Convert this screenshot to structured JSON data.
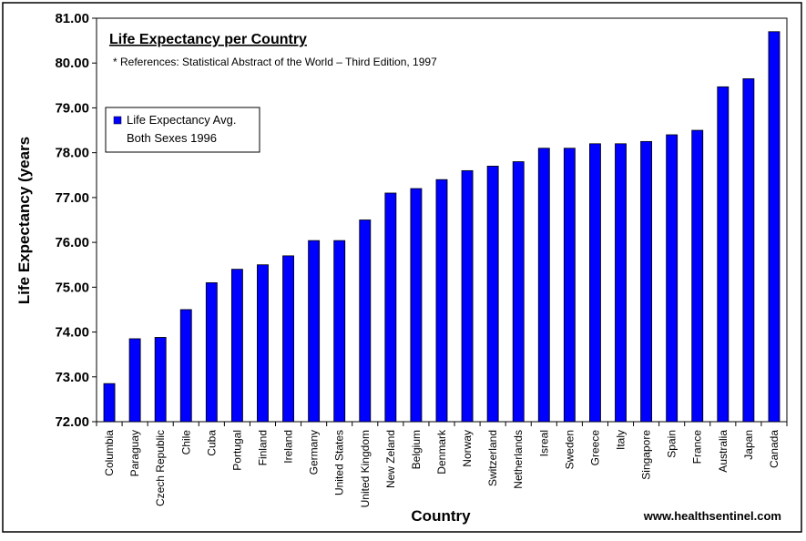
{
  "chart_data": {
    "type": "bar",
    "title": "Life Expectancy per Country",
    "subtitle": "* References: Statistical Abstract of the World – Third Edition, 1997",
    "xlabel": "Country",
    "ylabel": "Life Expectancy (years",
    "ylim": [
      72.0,
      81.0
    ],
    "yticks": [
      "72.00",
      "73.00",
      "74.00",
      "75.00",
      "76.00",
      "77.00",
      "78.00",
      "79.00",
      "80.00",
      "81.00"
    ],
    "grid": false,
    "legend_position": "left",
    "bar_color": "#0000ff",
    "categories": [
      "Columbia",
      "Paraguay",
      "Czech Republic",
      "Chile",
      "Cuba",
      "Portugal",
      "Finland",
      "Ireland",
      "Germany",
      "United States",
      "United Kingdom",
      "New Zeland",
      "Belgium",
      "Denmark",
      "Norway",
      "Switzerland",
      "Netherlands",
      "Isreal",
      "Sweden",
      "Greece",
      "Italy",
      "Singapore",
      "Spain",
      "France",
      "Australia",
      "Japan",
      "Canada"
    ],
    "series": [
      {
        "name": "Life Expectancy Avg. Both Sexes 1996",
        "legend_lines": [
          "Life Expectancy Avg.",
          "Both Sexes 1996"
        ],
        "values": [
          72.85,
          73.85,
          73.88,
          74.5,
          75.1,
          75.4,
          75.5,
          75.7,
          76.04,
          76.04,
          76.5,
          77.1,
          77.2,
          77.4,
          77.6,
          77.7,
          77.8,
          78.1,
          78.1,
          78.2,
          78.2,
          78.25,
          78.4,
          78.5,
          79.47,
          79.65,
          80.7
        ]
      }
    ]
  },
  "source": "www.healthsentinel.com"
}
